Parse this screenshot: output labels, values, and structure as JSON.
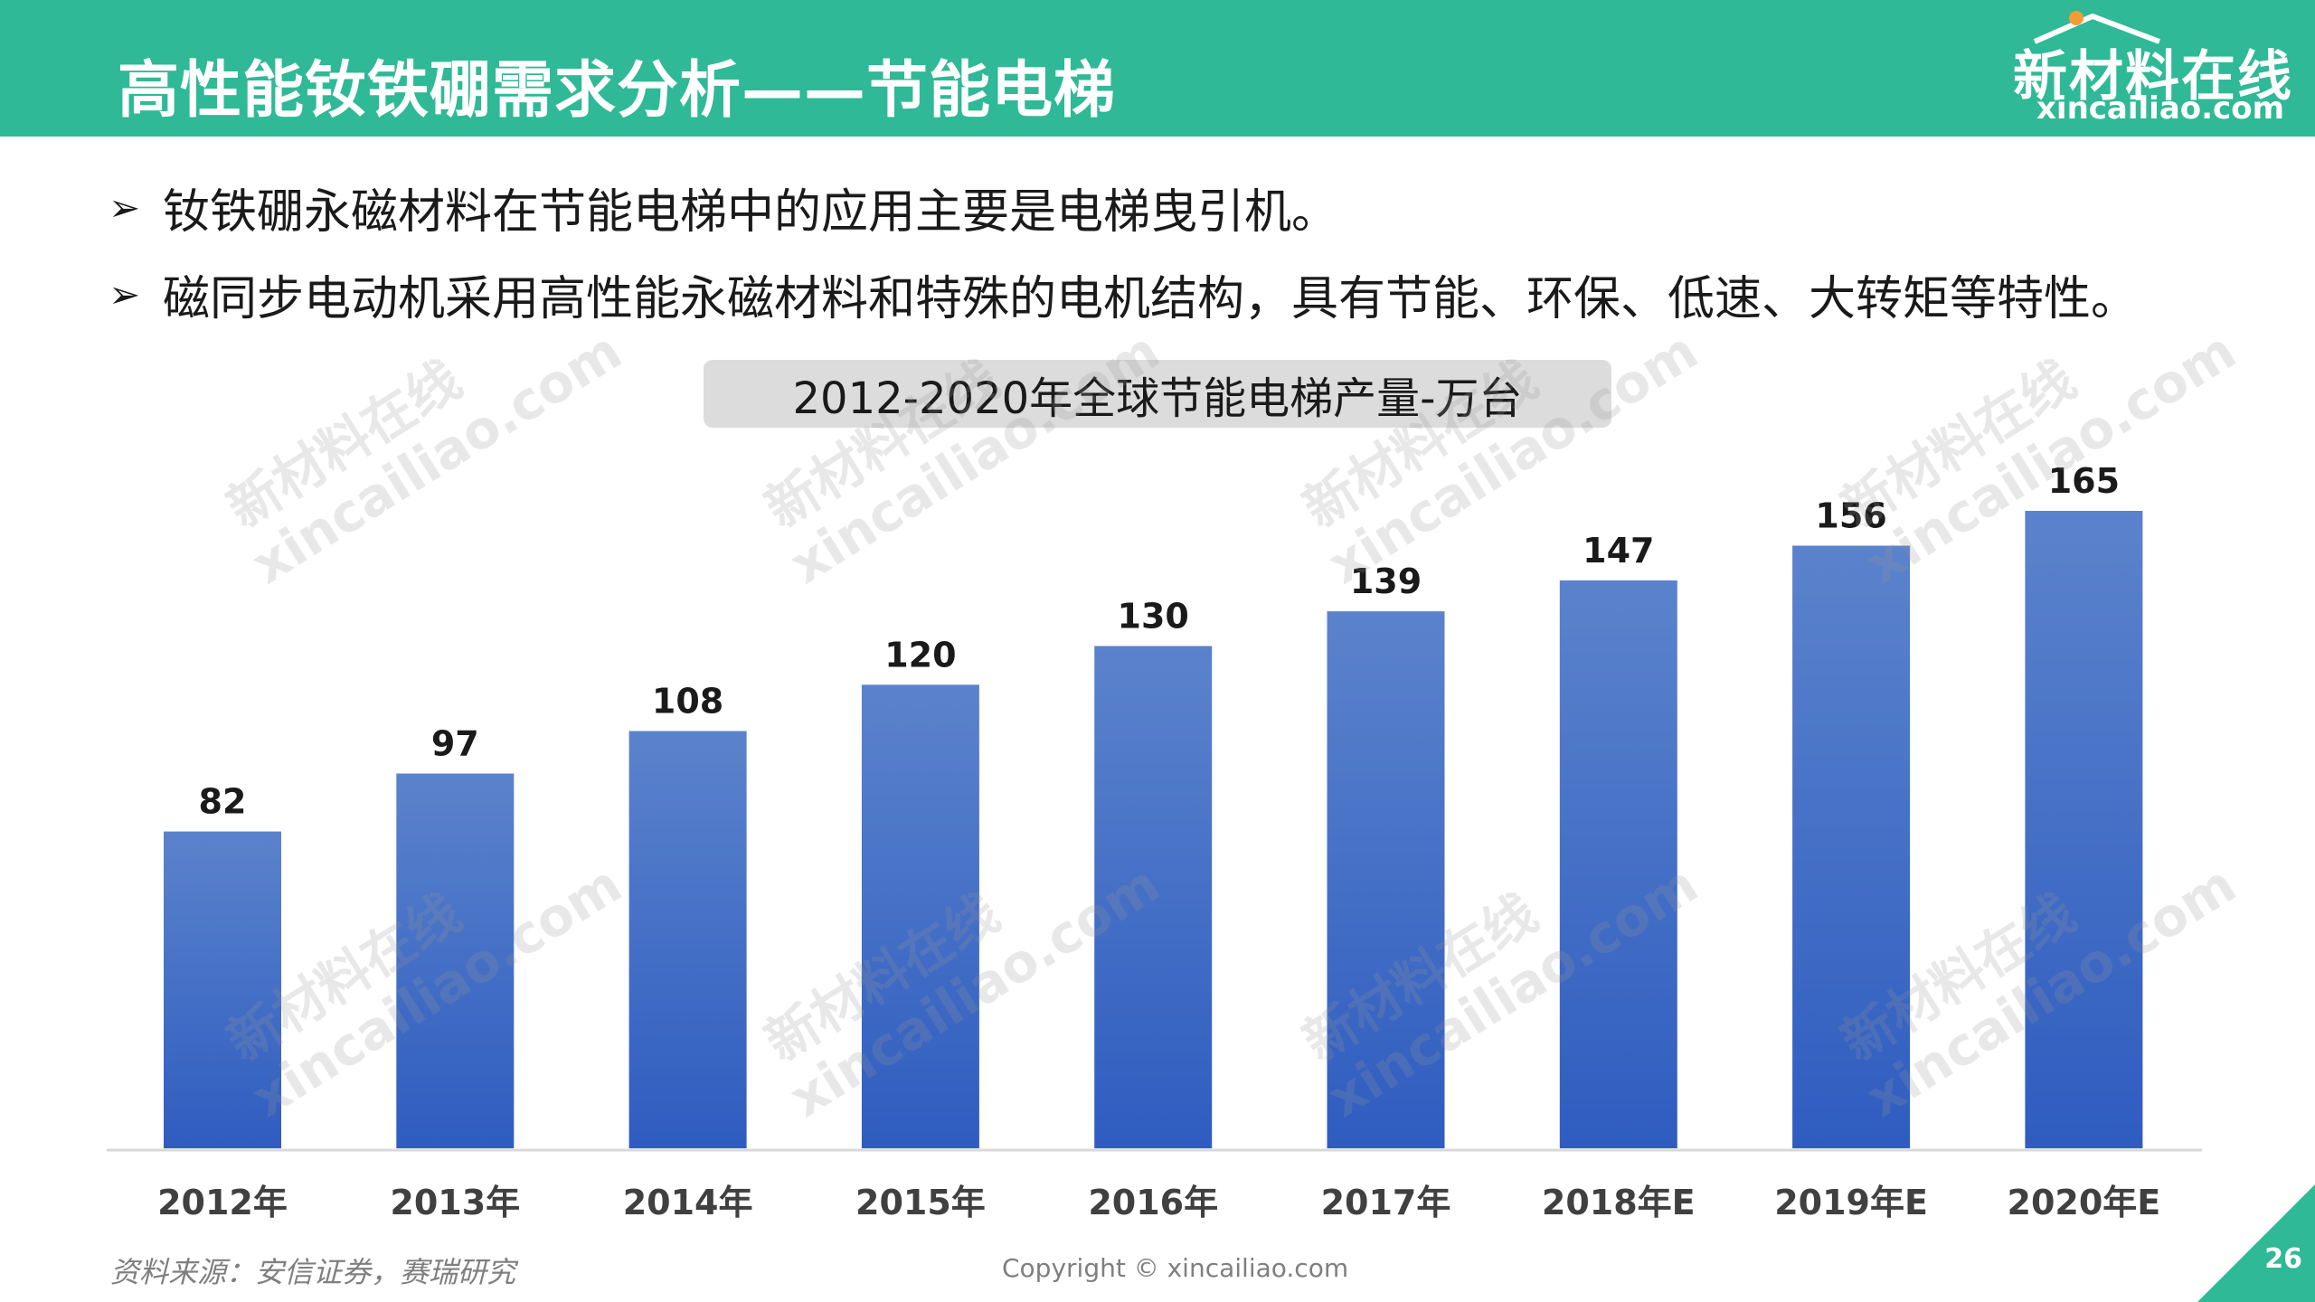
{
  "header": {
    "title": "高性能钕铁硼需求分析——节能电梯",
    "logo_cn": "新材料在线",
    "logo_en": "xincailiao.com"
  },
  "bullets": [
    {
      "icon": "arrow-bullet-icon",
      "text": "钕铁硼永磁材料在节能电梯中的应用主要是电梯曳引机。"
    },
    {
      "icon": "arrow-bullet-icon",
      "text": "磁同步电动机采用高性能永磁材料和特殊的电机结构，具有节能、环保、低速、大转矩等特性。"
    }
  ],
  "chart_data": {
    "type": "bar",
    "title": "2012-2020年全球节能电梯产量-万台",
    "categories": [
      "2012年",
      "2013年",
      "2014年",
      "2015年",
      "2016年",
      "2017年",
      "2018年E",
      "2019年E",
      "2020年E"
    ],
    "values": [
      82,
      97,
      108,
      120,
      130,
      139,
      147,
      156,
      165
    ],
    "data_labels": true,
    "grid": false,
    "legend": "none",
    "bar_color_top": "#5b83cc",
    "bar_color_bottom": "#2f5cc0"
  },
  "watermark": {
    "cn": "新材料在线",
    "en": "xincailiao.com"
  },
  "footer": {
    "source": "资料来源：安信证券，赛瑞研究",
    "copyright": "Copyright © xincailiao.com",
    "page_number": "26"
  },
  "colors": {
    "brand_green": "#2fb996",
    "logo_accent": "#f39c34"
  }
}
